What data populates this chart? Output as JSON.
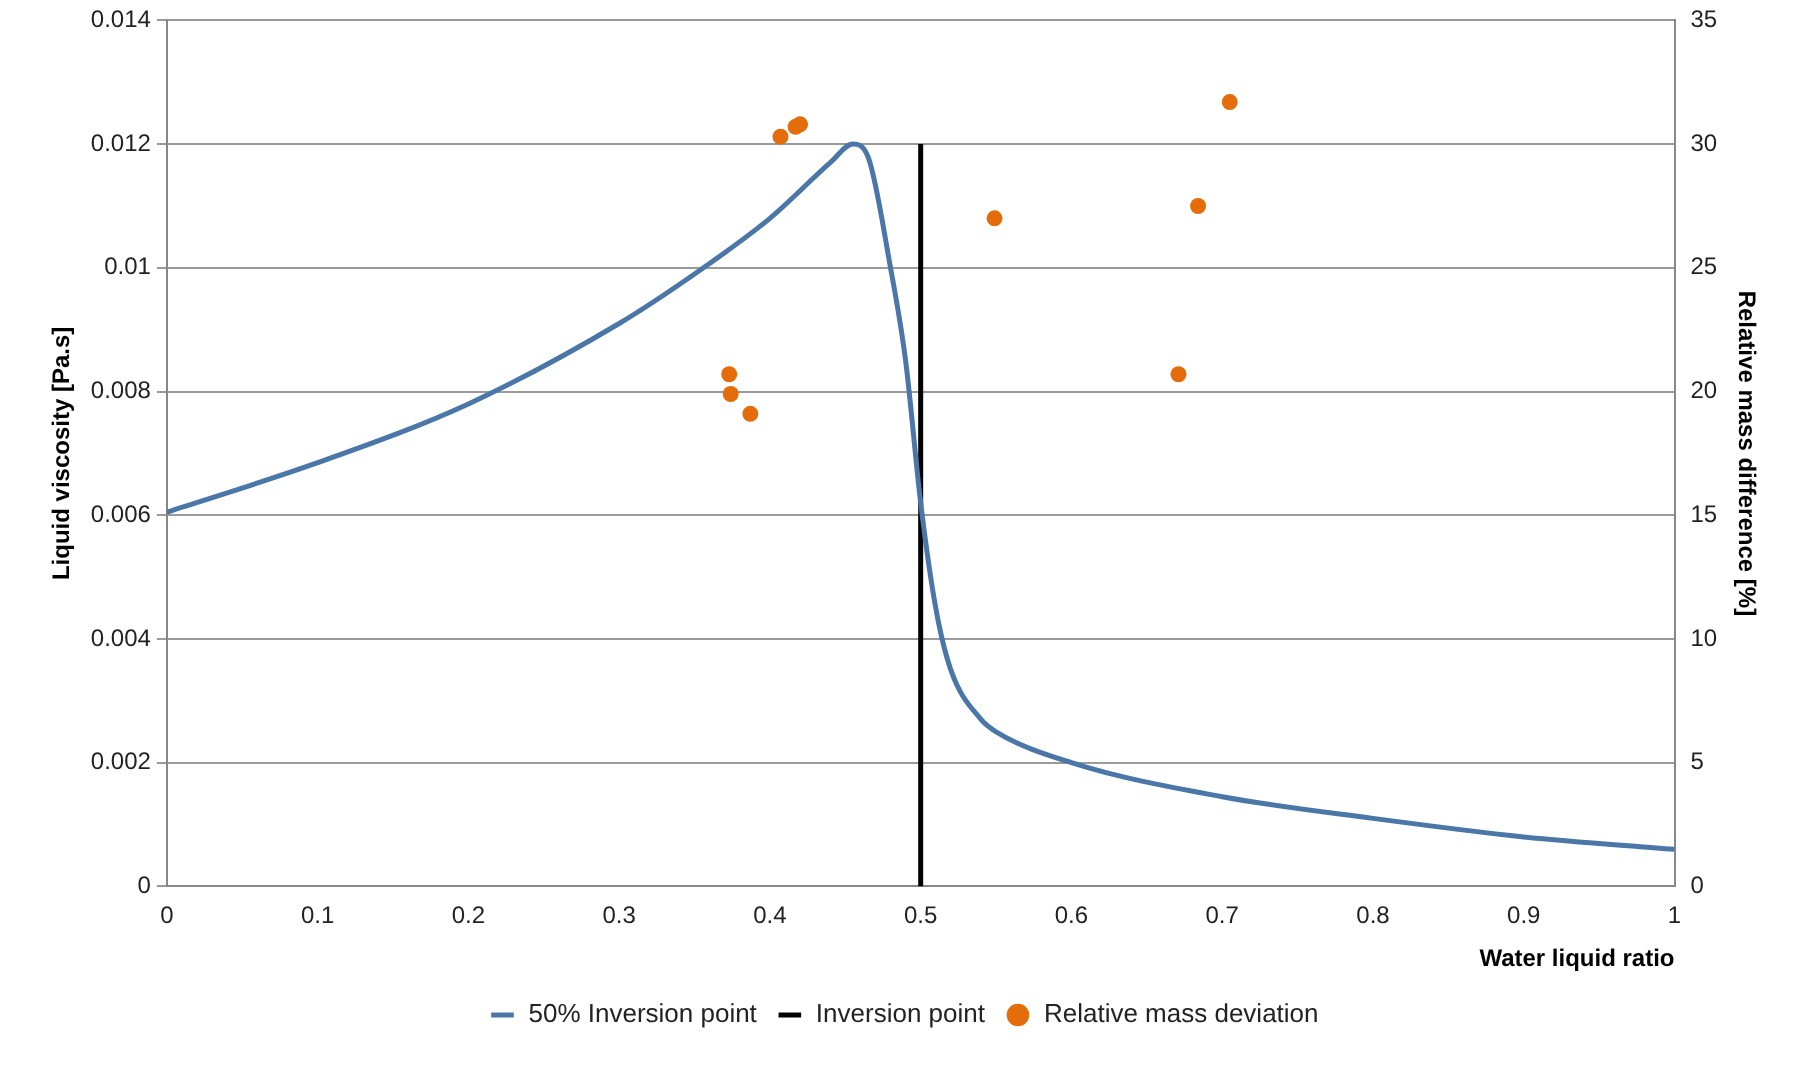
{
  "chart_data": {
    "type": "line",
    "xlabel": "Water liquid ratio",
    "ylabel": "Liquid viscosity [Pa.s]",
    "y2label": "Relative mass difference [%]",
    "xlim": [
      0,
      1
    ],
    "xticks": [
      0,
      0.1,
      0.2,
      0.3,
      0.4,
      0.5,
      0.6,
      0.7,
      0.8,
      0.9,
      1
    ],
    "ylim": [
      0,
      0.014
    ],
    "yticks": [
      0,
      0.002,
      0.004,
      0.006,
      0.008,
      0.01,
      0.012,
      0.014
    ],
    "y2lim": [
      0,
      35
    ],
    "y2ticks": [
      0,
      5,
      10,
      15,
      20,
      25,
      30,
      35
    ],
    "grid": "y",
    "legend": "bottom",
    "line_style": "solid",
    "series": [
      {
        "name": "50% Inversion point",
        "color": "#4a76a8",
        "marker": "none",
        "x": [
          0,
          0.1,
          0.2,
          0.3,
          0.35,
          0.4,
          0.44,
          0.455,
          0.465,
          0.48,
          0.49,
          0.5,
          0.51,
          0.52,
          0.54,
          0.55,
          0.6,
          0.7,
          0.8,
          0.9,
          1
        ],
        "values": [
          0.00605,
          0.00685,
          0.0078,
          0.0091,
          0.0099,
          0.0108,
          0.0117,
          0.012,
          0.0118,
          0.01,
          0.0085,
          0.0062,
          0.0045,
          0.0035,
          0.0027,
          0.0025,
          0.002,
          0.00145,
          0.0011,
          0.0008,
          0.0006
        ]
      },
      {
        "name": "Inversion point",
        "color": "#000000",
        "marker": "none",
        "x": [
          0.5,
          0.5
        ],
        "values": [
          0,
          0.012
        ]
      },
      {
        "name": "Relative mass deviation",
        "color": "#e46c0a",
        "type": "scatter",
        "marker": "circle",
        "axis": "y2",
        "x": [
          0.407,
          0.417,
          0.42,
          0.373,
          0.374,
          0.387,
          0.549,
          0.671,
          0.684,
          0.705
        ],
        "values": [
          30.3,
          30.7,
          30.8,
          20.7,
          19.9,
          19.1,
          27,
          20.7,
          27.5,
          31.7
        ]
      }
    ]
  }
}
